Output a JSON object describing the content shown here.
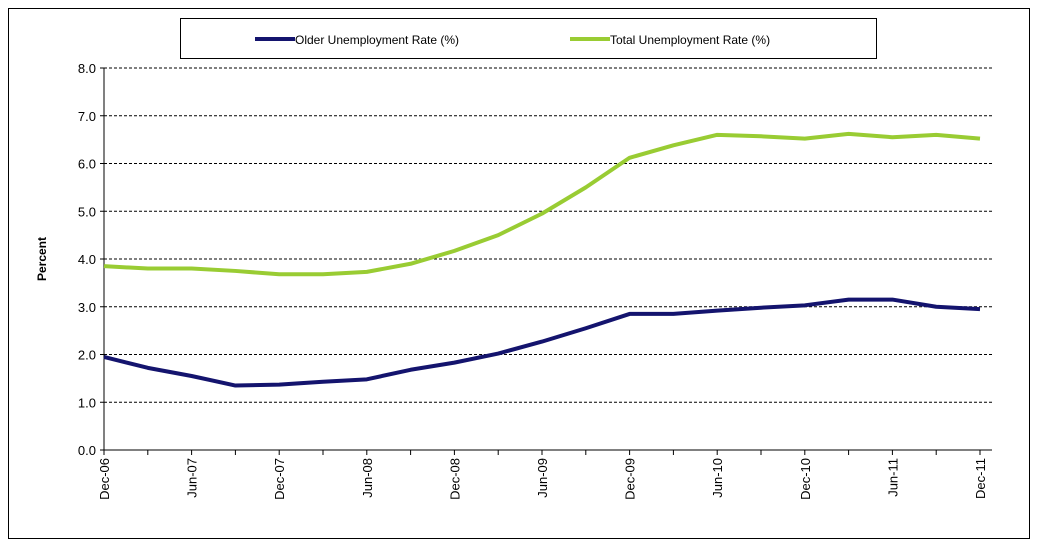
{
  "chart_data": {
    "type": "line",
    "y_label": "Percent",
    "categories": [
      "Dec-06",
      null,
      "Jun-07",
      null,
      "Dec-07",
      null,
      "Jun-08",
      null,
      "Dec-08",
      null,
      "Jun-09",
      null,
      "Dec-09",
      null,
      "Jun-10",
      null,
      "Dec-10",
      null,
      "Jun-11",
      null,
      "Dec-11"
    ],
    "series": [
      {
        "name": "Older Unemployment Rate (%)",
        "color": "#14146e",
        "values": [
          1.95,
          1.72,
          1.55,
          1.35,
          1.37,
          1.43,
          1.48,
          1.68,
          1.83,
          2.02,
          2.27,
          2.55,
          2.85,
          2.85,
          2.92,
          2.98,
          3.03,
          3.15,
          3.15,
          3.0,
          2.95
        ]
      },
      {
        "name": "Total Unemployment Rate (%)",
        "color": "#99cc33",
        "values": [
          3.85,
          3.8,
          3.8,
          3.75,
          3.68,
          3.68,
          3.73,
          3.9,
          4.17,
          4.5,
          4.95,
          5.5,
          6.12,
          6.38,
          6.6,
          6.57,
          6.52,
          6.62,
          6.55,
          6.6,
          6.52
        ]
      }
    ],
    "ylim": [
      0,
      8
    ],
    "yticks": [
      {
        "value": 0,
        "label": "0.0"
      },
      {
        "value": 1,
        "label": "1.0"
      },
      {
        "value": 2,
        "label": "2.0"
      },
      {
        "value": 3,
        "label": "3.0"
      },
      {
        "value": 4,
        "label": "4.0"
      },
      {
        "value": 5,
        "label": "5.0"
      },
      {
        "value": 6,
        "label": "6.0"
      },
      {
        "value": 7,
        "label": "7.0"
      },
      {
        "value": 8,
        "label": "8.0"
      }
    ],
    "grid": true,
    "legend": "top"
  }
}
